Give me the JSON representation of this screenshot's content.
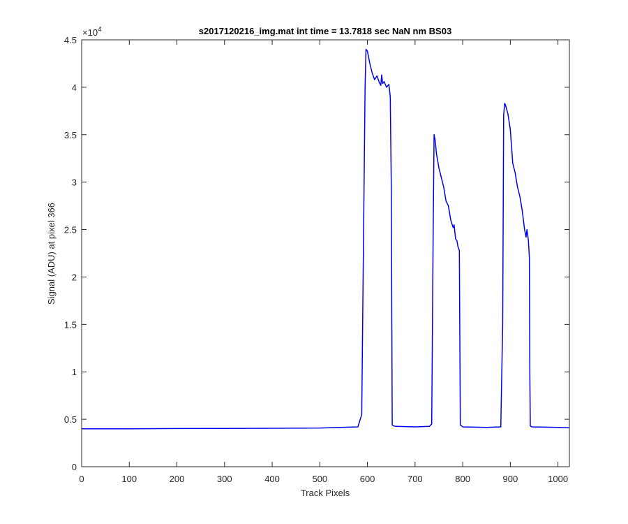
{
  "chart_data": {
    "type": "line",
    "title": "s2017120216_img.mat int time = 13.7818 sec  NaN nm BS03",
    "xlabel": "Track Pixels",
    "ylabel": "Signal (ADU) at pixel 366",
    "y_exponent_label": "×10",
    "y_exponent": "4",
    "xlim": [
      0,
      1024
    ],
    "ylim": [
      0,
      45000
    ],
    "xticks": [
      0,
      100,
      200,
      300,
      400,
      500,
      600,
      700,
      800,
      900,
      1000
    ],
    "xtick_labels": [
      "0",
      "100",
      "200",
      "300",
      "400",
      "500",
      "600",
      "700",
      "800",
      "900",
      "1000"
    ],
    "yticks": [
      0,
      5000,
      10000,
      15000,
      20000,
      25000,
      30000,
      35000,
      40000,
      45000
    ],
    "ytick_labels": [
      "0",
      "0.5",
      "1",
      "1.5",
      "2",
      "2.5",
      "3",
      "3.5",
      "4",
      "4.5"
    ],
    "grid": false,
    "line_color": "#0000ee",
    "series": [
      {
        "x": [
          0,
          100,
          200,
          300,
          400,
          500,
          580,
          588,
          592,
          595,
          597,
          600,
          605,
          610,
          615,
          620,
          625,
          628,
          630,
          632,
          635,
          640,
          645,
          648,
          650,
          652,
          655,
          660,
          700,
          730,
          735,
          738,
          740,
          742,
          745,
          750,
          755,
          760,
          765,
          770,
          775,
          780,
          782,
          785,
          788,
          790,
          793,
          795,
          800,
          850,
          880,
          884,
          886,
          888,
          890,
          895,
          900,
          905,
          910,
          915,
          920,
          925,
          930,
          933,
          935,
          938,
          940,
          941,
          942,
          945,
          1000,
          1024
        ],
        "y": [
          4000,
          4000,
          4020,
          4030,
          4050,
          4080,
          4200,
          5500,
          25000,
          40000,
          44000,
          43800,
          42500,
          41500,
          40800,
          41200,
          40500,
          40200,
          41300,
          40400,
          40600,
          40000,
          40300,
          39000,
          30000,
          4400,
          4300,
          4250,
          4200,
          4250,
          4500,
          25000,
          35000,
          34500,
          33000,
          31500,
          30500,
          29500,
          28000,
          27500,
          26000,
          25200,
          25500,
          24000,
          23800,
          23200,
          22800,
          4400,
          4200,
          4150,
          4200,
          15000,
          37000,
          38300,
          38100,
          37200,
          35500,
          32000,
          31000,
          29500,
          28500,
          27000,
          25000,
          24200,
          25000,
          23800,
          22000,
          10000,
          4300,
          4200,
          4150,
          4100
        ]
      }
    ]
  }
}
